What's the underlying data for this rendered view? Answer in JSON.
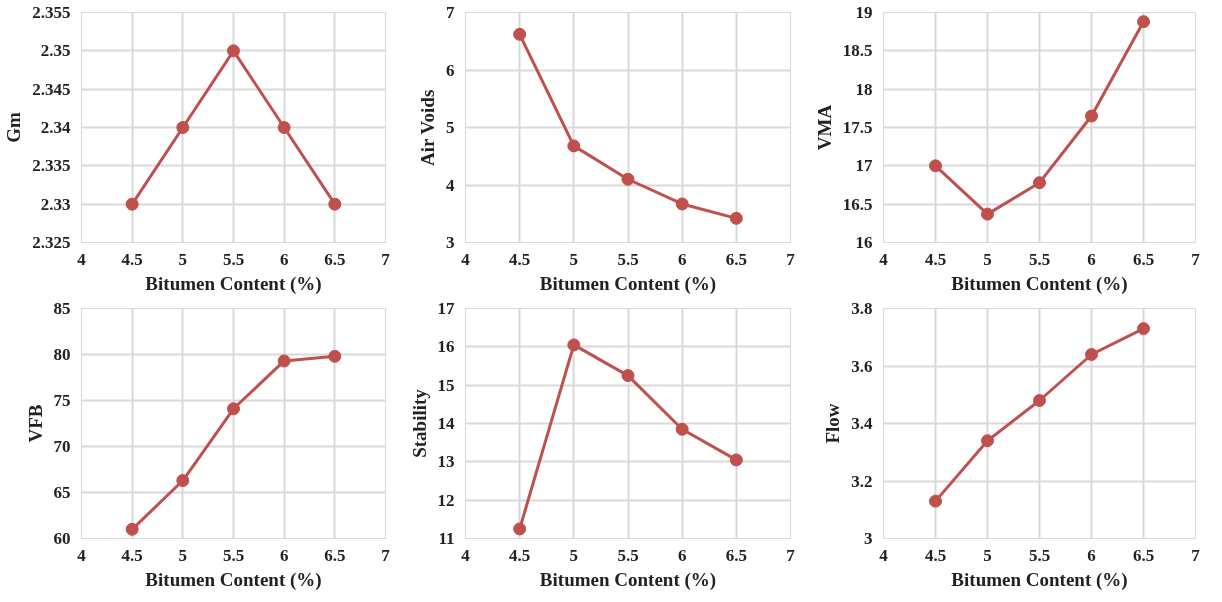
{
  "chart_data": [
    {
      "type": "line",
      "xlabel": "Bitumen Content (%)",
      "ylabel": "Gm",
      "x": [
        4.5,
        5,
        5.5,
        6,
        6.5
      ],
      "series": [
        {
          "color": "#c0504d",
          "values": [
            2.33,
            2.34,
            2.35,
            2.34,
            2.33
          ]
        }
      ],
      "xlim": [
        4,
        7
      ],
      "xticks": [
        4,
        4.5,
        5,
        5.5,
        6,
        6.5,
        7
      ],
      "ylim": [
        2.325,
        2.355
      ],
      "yticks": [
        2.325,
        2.33,
        2.335,
        2.34,
        2.345,
        2.35,
        2.355
      ],
      "grid": true,
      "marker": "circle",
      "line_style": "solid"
    },
    {
      "type": "line",
      "xlabel": "Bitumen Content (%)",
      "ylabel": "Air Voids",
      "x": [
        4.5,
        5,
        5.5,
        6,
        6.5
      ],
      "series": [
        {
          "color": "#c0504d",
          "values": [
            6.62,
            4.68,
            4.1,
            3.67,
            3.42
          ]
        }
      ],
      "xlim": [
        4,
        7
      ],
      "xticks": [
        4,
        4.5,
        5,
        5.5,
        6,
        6.5,
        7
      ],
      "ylim": [
        3,
        7
      ],
      "yticks": [
        3,
        4,
        5,
        6,
        7
      ],
      "grid": true,
      "marker": "circle",
      "line_style": "solid"
    },
    {
      "type": "line",
      "xlabel": "Bitumen Content (%)",
      "ylabel": "VMA",
      "x": [
        4.5,
        5,
        5.5,
        6,
        6.5
      ],
      "series": [
        {
          "color": "#c0504d",
          "values": [
            17.0,
            16.37,
            16.78,
            17.65,
            18.88
          ]
        }
      ],
      "xlim": [
        4,
        7
      ],
      "xticks": [
        4,
        4.5,
        5,
        5.5,
        6,
        6.5,
        7
      ],
      "ylim": [
        16,
        19
      ],
      "yticks": [
        16,
        16.5,
        17,
        17.5,
        18,
        18.5,
        19
      ],
      "grid": true,
      "marker": "circle",
      "line_style": "solid"
    },
    {
      "type": "line",
      "xlabel": "Bitumen Content (%)",
      "ylabel": "VFB",
      "x": [
        4.5,
        5,
        5.5,
        6,
        6.5
      ],
      "series": [
        {
          "color": "#c0504d",
          "values": [
            61.0,
            66.3,
            74.1,
            79.3,
            79.8
          ]
        }
      ],
      "xlim": [
        4,
        7
      ],
      "xticks": [
        4,
        4.5,
        5,
        5.5,
        6,
        6.5,
        7
      ],
      "ylim": [
        60,
        85
      ],
      "yticks": [
        60,
        65,
        70,
        75,
        80,
        85
      ],
      "grid": true,
      "marker": "circle",
      "line_style": "solid"
    },
    {
      "type": "line",
      "xlabel": "Bitumen Content (%)",
      "ylabel": "Stability",
      "x": [
        4.5,
        5,
        5.5,
        6,
        6.5
      ],
      "series": [
        {
          "color": "#c0504d",
          "values": [
            11.25,
            16.05,
            15.25,
            13.85,
            13.05
          ]
        }
      ],
      "xlim": [
        4,
        7
      ],
      "xticks": [
        4,
        4.5,
        5,
        5.5,
        6,
        6.5,
        7
      ],
      "ylim": [
        11,
        17
      ],
      "yticks": [
        11,
        12,
        13,
        14,
        15,
        16,
        17
      ],
      "grid": true,
      "marker": "circle",
      "line_style": "solid"
    },
    {
      "type": "line",
      "xlabel": "Bitumen Content (%)",
      "ylabel": "Flow",
      "x": [
        4.5,
        5,
        5.5,
        6,
        6.5
      ],
      "series": [
        {
          "color": "#c0504d",
          "values": [
            3.13,
            3.34,
            3.48,
            3.64,
            3.73
          ]
        }
      ],
      "xlim": [
        4,
        7
      ],
      "xticks": [
        4,
        4.5,
        5,
        5.5,
        6,
        6.5,
        7
      ],
      "ylim": [
        3,
        3.8
      ],
      "yticks": [
        3,
        3.2,
        3.4,
        3.6,
        3.8
      ],
      "grid": true,
      "marker": "circle",
      "line_style": "solid"
    }
  ]
}
